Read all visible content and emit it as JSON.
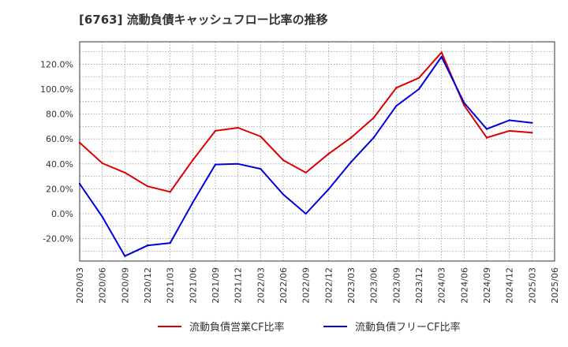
{
  "chart_data": {
    "type": "line",
    "title": "[6763]  流動負債キャッシュフロー比率の推移",
    "xlabel": "",
    "ylabel": "",
    "ylim": [
      -38,
      138
    ],
    "yticks": [
      -20,
      0,
      20,
      40,
      60,
      80,
      100,
      120
    ],
    "ytick_labels": [
      "-20.0%",
      "0.0%",
      "20.0%",
      "40.0%",
      "60.0%",
      "80.0%",
      "100.0%",
      "120.0%"
    ],
    "categories": [
      "2020/03",
      "2020/06",
      "2020/09",
      "2020/12",
      "2021/03",
      "2021/06",
      "2021/09",
      "2021/12",
      "2022/03",
      "2022/06",
      "2022/09",
      "2022/12",
      "2023/03",
      "2023/06",
      "2023/09",
      "2023/12",
      "2024/03",
      "2024/06",
      "2024/09",
      "2024/12",
      "2025/03",
      "2025/06"
    ],
    "grid": true,
    "legend_position": "bottom",
    "series": [
      {
        "name": "流動負債営業CF比率",
        "color": "#dd0000",
        "values": [
          57.0,
          40.5,
          33.0,
          22.0,
          17.5,
          43.0,
          66.5,
          69.0,
          62.0,
          43.0,
          33.0,
          48.0,
          61.0,
          77.0,
          101.0,
          109.0,
          129.5,
          87.0,
          61.0,
          66.5,
          65.0,
          null
        ]
      },
      {
        "name": "流動負債フリーCF比率",
        "color": "#0000dd",
        "values": [
          24.0,
          -2.5,
          -34.0,
          -25.5,
          -23.5,
          9.0,
          39.5,
          40.0,
          36.0,
          15.5,
          0.0,
          19.5,
          41.5,
          61.0,
          86.5,
          100.0,
          126.0,
          89.0,
          68.0,
          75.0,
          73.0,
          null
        ]
      }
    ]
  }
}
